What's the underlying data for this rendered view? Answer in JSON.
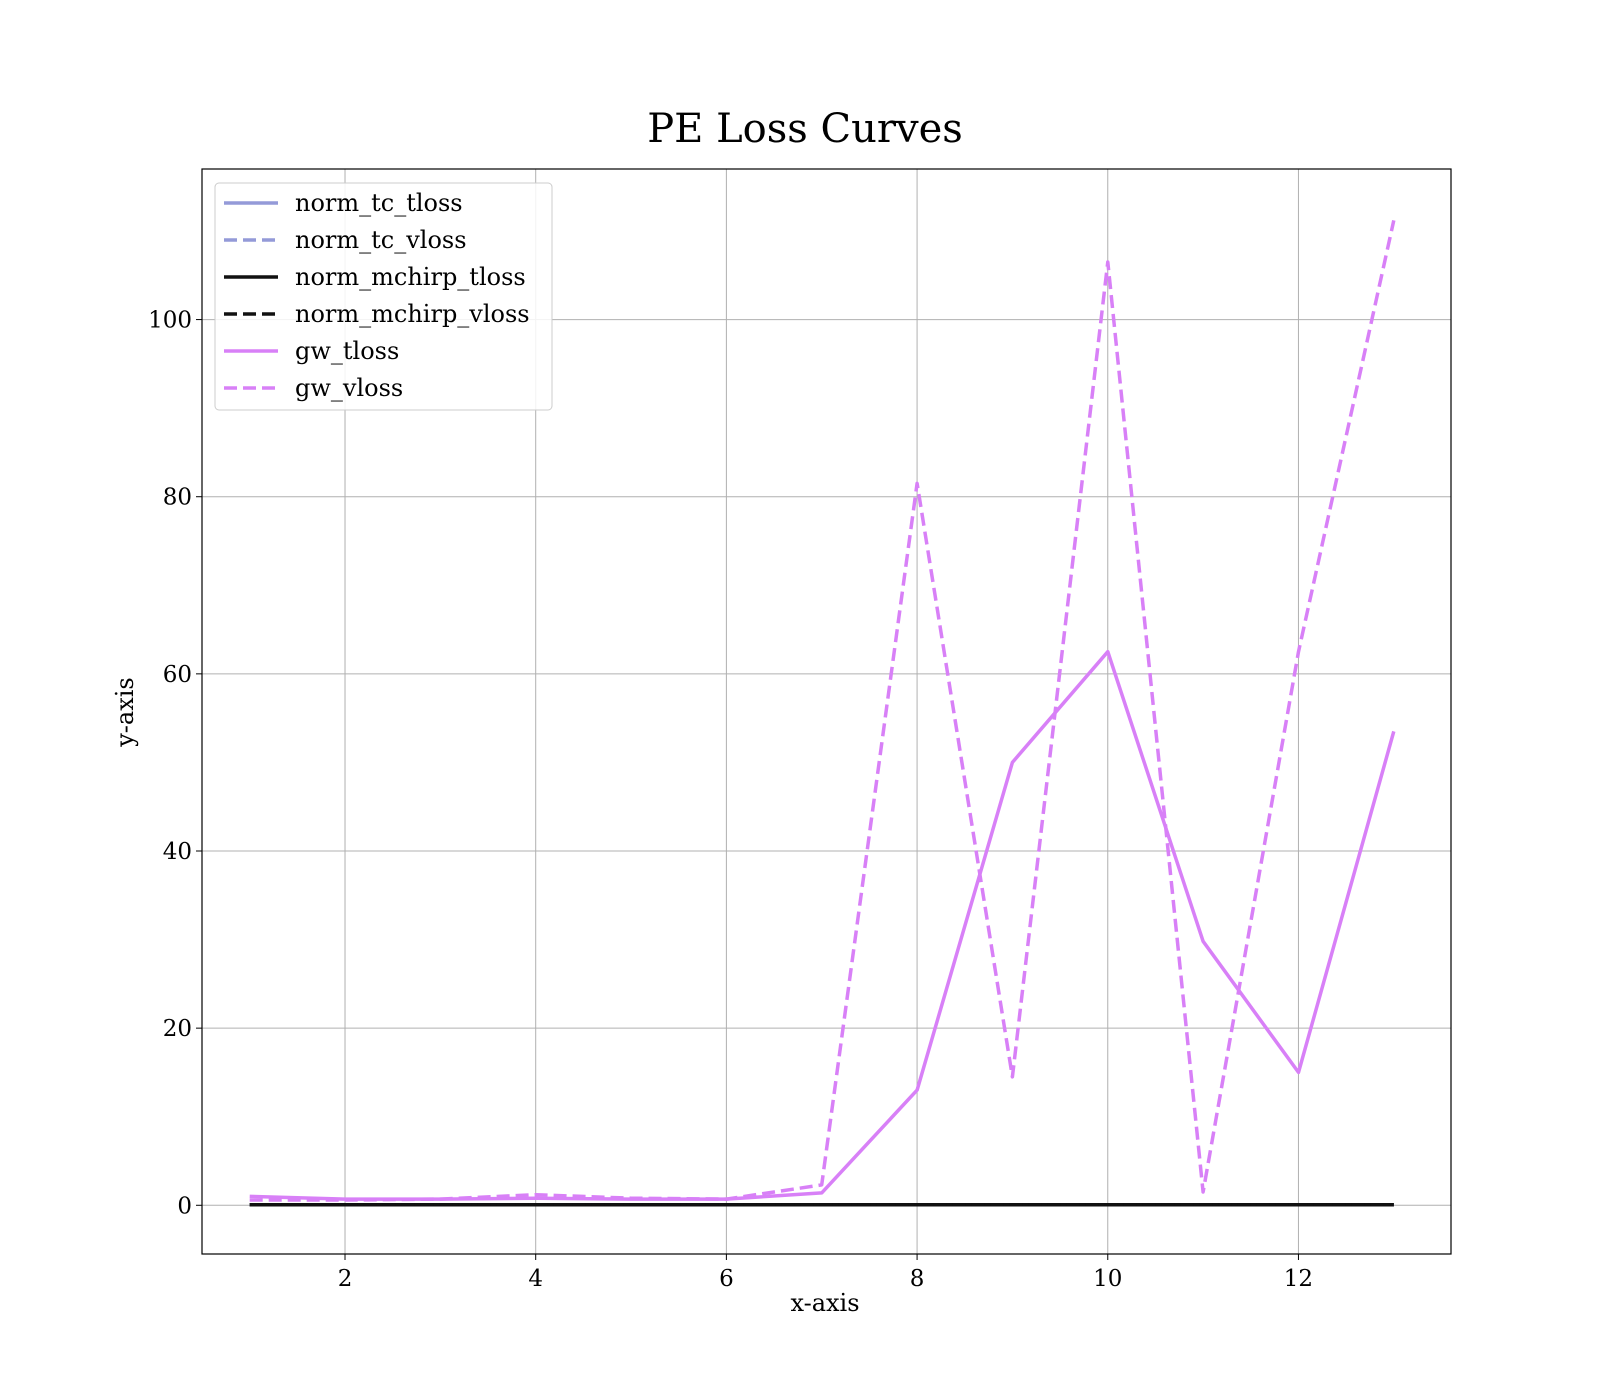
{
  "chart_data": {
    "type": "line",
    "title": "PE Loss Curves",
    "xlabel": "x-axis",
    "ylabel": "y-axis",
    "x": [
      1,
      2,
      3,
      4,
      5,
      6,
      7,
      8,
      9,
      10,
      11,
      12,
      13
    ],
    "xlim": [
      0.5,
      13.6
    ],
    "ylim": [
      -5.5,
      117
    ],
    "x_ticks": [
      2,
      4,
      6,
      8,
      10,
      12
    ],
    "y_ticks": [
      0,
      20,
      40,
      60,
      80,
      100
    ],
    "grid": true,
    "legend_position": "top-left",
    "series": [
      {
        "name": "norm_tc_tloss",
        "color": "#949ad8",
        "dash": false,
        "values": [
          0.05,
          0.05,
          0.05,
          0.05,
          0.05,
          0.05,
          0.05,
          0.05,
          0.05,
          0.05,
          0.05,
          0.05,
          0.05
        ]
      },
      {
        "name": "norm_tc_vloss",
        "color": "#949ad8",
        "dash": true,
        "values": [
          0.05,
          0.05,
          0.05,
          0.05,
          0.05,
          0.05,
          0.05,
          0.05,
          0.05,
          0.05,
          0.05,
          0.05,
          0.05
        ]
      },
      {
        "name": "norm_mchirp_tloss",
        "color": "#111111",
        "dash": false,
        "values": [
          0.05,
          0.05,
          0.05,
          0.05,
          0.05,
          0.05,
          0.05,
          0.05,
          0.05,
          0.05,
          0.05,
          0.05,
          0.05
        ]
      },
      {
        "name": "norm_mchirp_vloss",
        "color": "#111111",
        "dash": true,
        "values": [
          0.05,
          0.05,
          0.05,
          0.05,
          0.05,
          0.05,
          0.05,
          0.05,
          0.05,
          0.05,
          0.05,
          0.05,
          0.05
        ]
      },
      {
        "name": "gw_tloss",
        "color": "#d880f7",
        "dash": false,
        "values": [
          1.0,
          0.7,
          0.7,
          0.8,
          0.7,
          0.7,
          1.4,
          13.0,
          50.0,
          62.5,
          29.8,
          15.0,
          53.5
        ]
      },
      {
        "name": "gw_vloss",
        "color": "#d880f7",
        "dash": true,
        "values": [
          0.6,
          0.6,
          0.7,
          1.2,
          0.8,
          0.7,
          2.3,
          81.5,
          14.5,
          106.5,
          1.5,
          62.5,
          111.2
        ]
      }
    ]
  }
}
